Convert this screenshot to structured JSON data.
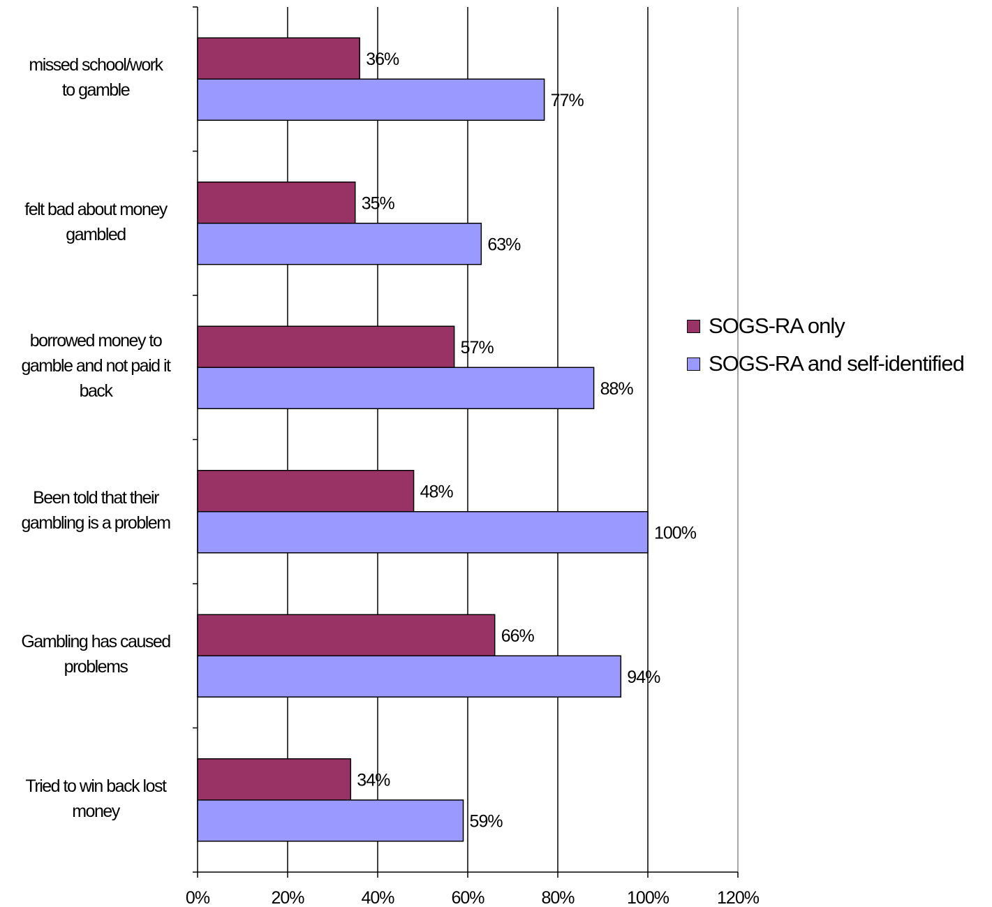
{
  "chart_data": {
    "type": "bar",
    "orientation": "horizontal",
    "categories": [
      "missed school/work\nto gamble",
      "felt bad about money\ngambled",
      "borrowed money to\ngamble and not paid it\nback",
      "Been told that their\ngambling is a problem",
      "Gambling has caused\nproblems",
      "Tried to win back lost\nmoney"
    ],
    "series": [
      {
        "name": "SOGS-RA only",
        "color": "#993366",
        "values": [
          36,
          35,
          57,
          48,
          66,
          34
        ],
        "labels": [
          "36%",
          "35%",
          "57%",
          "48%",
          "66%",
          "34%"
        ]
      },
      {
        "name": "SOGS-RA and self-identified",
        "color": "#9999ff",
        "values": [
          77,
          63,
          88,
          100,
          94,
          59
        ],
        "labels": [
          "77%",
          "63%",
          "88%",
          "100%",
          "94%",
          "59%"
        ]
      }
    ],
    "xlim": [
      0,
      120
    ],
    "xticks": [
      0,
      20,
      40,
      60,
      80,
      100,
      120
    ],
    "xtick_labels": [
      "0%",
      "20%",
      "40%",
      "60%",
      "80%",
      "100%",
      "120%"
    ],
    "grid": true,
    "legend_position": "right"
  }
}
